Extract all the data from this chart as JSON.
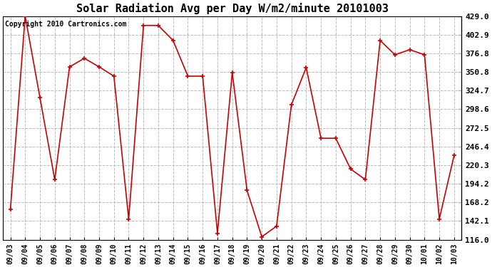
{
  "title": "Solar Radiation Avg per Day W/m2/minute 20101003",
  "copyright": "Copyright 2010 Cartronics.com",
  "dates": [
    "09/03",
    "09/04",
    "09/05",
    "09/06",
    "09/07",
    "09/08",
    "09/09",
    "09/10",
    "09/11",
    "09/12",
    "09/13",
    "09/14",
    "09/15",
    "09/16",
    "09/17",
    "09/18",
    "09/19",
    "09/20",
    "09/21",
    "09/22",
    "09/23",
    "09/24",
    "09/25",
    "09/26",
    "09/27",
    "09/28",
    "09/29",
    "09/30",
    "10/01",
    "10/02",
    "10/03"
  ],
  "values": [
    158.0,
    429.0,
    315.0,
    200.0,
    358.0,
    370.0,
    358.0,
    345.0,
    145.0,
    416.0,
    416.0,
    395.0,
    345.0,
    345.0,
    125.0,
    350.0,
    185.0,
    120.0,
    135.0,
    305.0,
    357.0,
    258.0,
    258.0,
    215.0,
    200.0,
    395.0,
    375.0,
    382.0,
    375.0,
    145.0,
    234.0
  ],
  "line_color": "#cc0000",
  "marker_color": "#cc0000",
  "bg_color": "#ffffff",
  "plot_bg_color": "#ffffff",
  "grid_color": "#bbbbbb",
  "ylim": [
    116.0,
    429.0
  ],
  "yticks": [
    116.0,
    142.1,
    168.2,
    194.2,
    220.3,
    246.4,
    272.5,
    298.6,
    324.7,
    350.8,
    376.8,
    402.9,
    429.0
  ],
  "title_fontsize": 11,
  "label_fontsize": 7,
  "copyright_fontsize": 7
}
